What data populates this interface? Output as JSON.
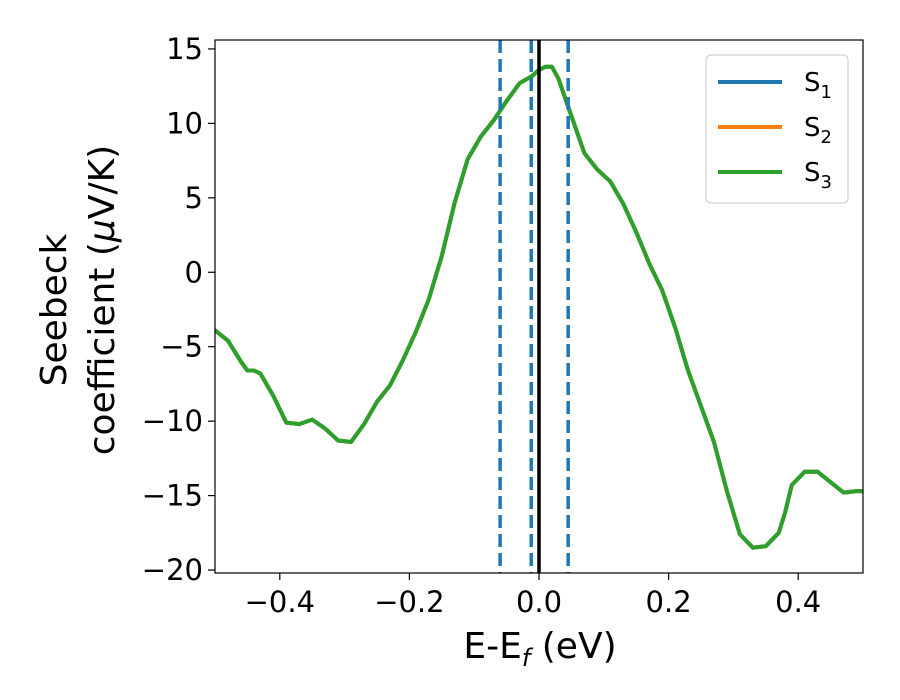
{
  "chart_data": {
    "type": "line",
    "xlabel": {
      "base": "E-E",
      "sub": "f",
      "rest": " (eV)"
    },
    "ylabel": {
      "line1": "Seebeck",
      "line2_pre": "coefficient  (",
      "mu": "μ",
      "line2_post": "V/K)"
    },
    "xlim": [
      -0.5,
      0.5
    ],
    "ylim": [
      -20.2,
      15.6
    ],
    "xticks": [
      -0.4,
      -0.2,
      0.0,
      0.2,
      0.4
    ],
    "xtick_labels": [
      "−0.4",
      "−0.2",
      "0.0",
      "0.2",
      "0.4"
    ],
    "yticks": [
      -20,
      -15,
      -10,
      -5,
      0,
      5,
      10,
      15
    ],
    "ytick_labels": [
      "−20",
      "−15",
      "−10",
      "−5",
      "0",
      "5",
      "10",
      "15"
    ],
    "legend_position": "top-right",
    "vlines": [
      {
        "x": 0.0,
        "style": "solid",
        "color": "#000000"
      },
      {
        "x": -0.06,
        "style": "dashed",
        "color": "#1f77b4"
      },
      {
        "x": -0.012,
        "style": "dashed",
        "color": "#1f77b4"
      },
      {
        "x": 0.045,
        "style": "dashed",
        "color": "#1f77b4"
      }
    ],
    "x": [
      -0.5,
      -0.48,
      -0.46,
      -0.45,
      -0.44,
      -0.43,
      -0.41,
      -0.39,
      -0.37,
      -0.35,
      -0.33,
      -0.31,
      -0.29,
      -0.27,
      -0.25,
      -0.23,
      -0.21,
      -0.19,
      -0.17,
      -0.15,
      -0.13,
      -0.11,
      -0.09,
      -0.07,
      -0.05,
      -0.03,
      -0.01,
      0.0,
      0.01,
      0.02,
      0.03,
      0.05,
      0.07,
      0.09,
      0.11,
      0.13,
      0.15,
      0.17,
      0.19,
      0.21,
      0.23,
      0.25,
      0.27,
      0.29,
      0.31,
      0.33,
      0.35,
      0.37,
      0.38,
      0.39,
      0.41,
      0.43,
      0.45,
      0.47,
      0.49,
      0.5
    ],
    "series": [
      {
        "name_base": "S",
        "name_sub": "1",
        "color": "#1f77b4",
        "values": [
          -3.9,
          -4.6,
          -6.0,
          -6.6,
          -6.6,
          -6.8,
          -8.3,
          -10.1,
          -10.2,
          -9.9,
          -10.5,
          -11.3,
          -11.4,
          -10.2,
          -8.7,
          -7.6,
          -5.9,
          -4.0,
          -1.8,
          1.1,
          4.7,
          7.6,
          9.1,
          10.2,
          11.5,
          12.7,
          13.2,
          13.6,
          13.8,
          13.8,
          13.0,
          10.5,
          8.0,
          6.9,
          6.1,
          4.6,
          2.7,
          0.6,
          -1.2,
          -3.7,
          -6.6,
          -9.0,
          -11.4,
          -14.7,
          -17.6,
          -18.5,
          -18.4,
          -17.5,
          -16.1,
          -14.3,
          -13.4,
          -13.4,
          -14.1,
          -14.8,
          -14.7,
          -14.7
        ]
      },
      {
        "name_base": "S",
        "name_sub": "2",
        "color": "#ff7f0e",
        "values": [
          -3.9,
          -4.6,
          -6.0,
          -6.6,
          -6.6,
          -6.8,
          -8.3,
          -10.1,
          -10.2,
          -9.9,
          -10.5,
          -11.3,
          -11.4,
          -10.2,
          -8.7,
          -7.6,
          -5.9,
          -4.0,
          -1.8,
          1.1,
          4.7,
          7.6,
          9.1,
          10.2,
          11.5,
          12.7,
          13.2,
          13.6,
          13.8,
          13.8,
          13.0,
          10.5,
          8.0,
          6.9,
          6.1,
          4.6,
          2.7,
          0.6,
          -1.2,
          -3.7,
          -6.6,
          -9.0,
          -11.4,
          -14.7,
          -17.6,
          -18.5,
          -18.4,
          -17.5,
          -16.1,
          -14.3,
          -13.4,
          -13.4,
          -14.1,
          -14.8,
          -14.7,
          -14.7
        ]
      },
      {
        "name_base": "S",
        "name_sub": "3",
        "color": "#2ca02c",
        "values": [
          -3.9,
          -4.6,
          -6.0,
          -6.6,
          -6.6,
          -6.8,
          -8.3,
          -10.1,
          -10.2,
          -9.9,
          -10.5,
          -11.3,
          -11.4,
          -10.2,
          -8.7,
          -7.6,
          -5.9,
          -4.0,
          -1.8,
          1.1,
          4.7,
          7.6,
          9.1,
          10.2,
          11.5,
          12.7,
          13.2,
          13.6,
          13.8,
          13.8,
          13.0,
          10.5,
          8.0,
          6.9,
          6.1,
          4.6,
          2.7,
          0.6,
          -1.2,
          -3.7,
          -6.6,
          -9.0,
          -11.4,
          -14.7,
          -17.6,
          -18.5,
          -18.4,
          -17.5,
          -16.1,
          -14.3,
          -13.4,
          -13.4,
          -14.1,
          -14.8,
          -14.7,
          -14.7
        ]
      }
    ]
  }
}
